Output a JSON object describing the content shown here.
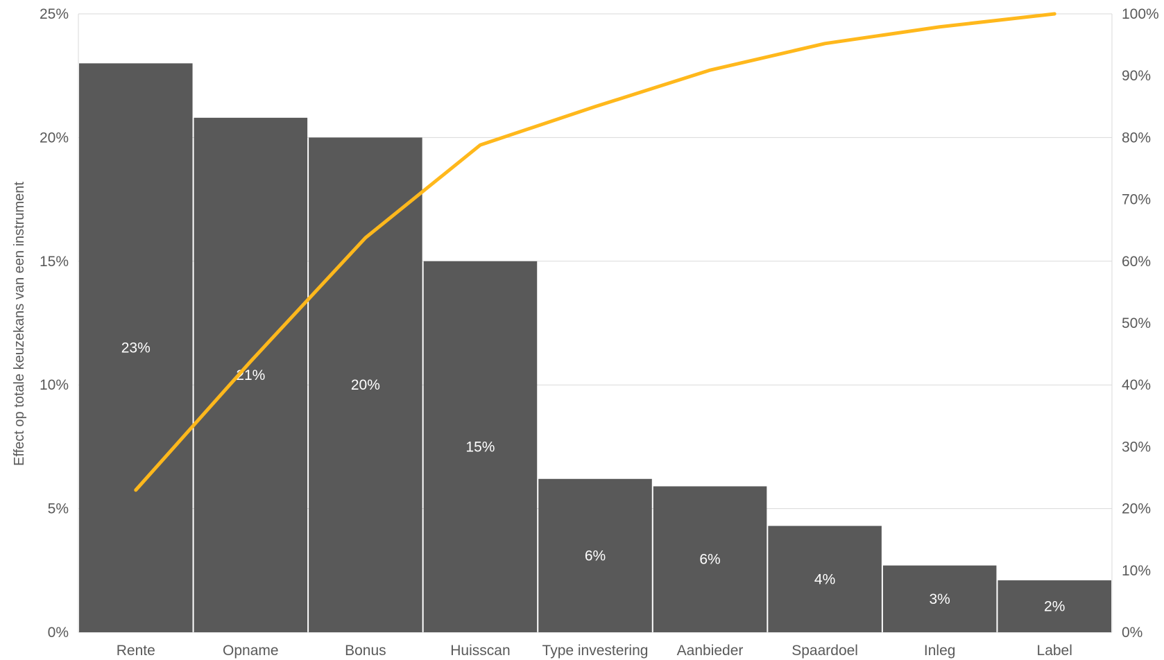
{
  "chart_data": {
    "type": "bar",
    "categories": [
      "Rente",
      "Opname",
      "Bonus",
      "Huisscan",
      "Type investering",
      "Aanbieder",
      "Spaardoel",
      "Inleg",
      "Label"
    ],
    "series": [
      {
        "type": "bar",
        "values": [
          23.0,
          20.8,
          20.0,
          15.0,
          6.2,
          5.9,
          4.3,
          2.7,
          2.1
        ],
        "data_labels": [
          "23%",
          "21%",
          "20%",
          "15%",
          "6%",
          "6%",
          "4%",
          "3%",
          "2%"
        ],
        "color": "#595959",
        "axis": "left"
      },
      {
        "type": "line",
        "values": [
          23.0,
          43.8,
          63.8,
          78.8,
          85.0,
          90.9,
          95.2,
          97.9,
          100.0
        ],
        "color": "#FFB81C",
        "axis": "right"
      }
    ],
    "ylabel": "Effect op totale keuzekans van een instrument",
    "ylim": [
      0,
      25
    ],
    "y2lim": [
      0,
      100
    ],
    "yticks": [
      "0%",
      "5%",
      "10%",
      "15%",
      "20%",
      "25%"
    ],
    "y2ticks": [
      "0%",
      "10%",
      "20%",
      "30%",
      "40%",
      "50%",
      "60%",
      "70%",
      "80%",
      "90%",
      "100%"
    ],
    "grid": true,
    "legend": "none"
  }
}
